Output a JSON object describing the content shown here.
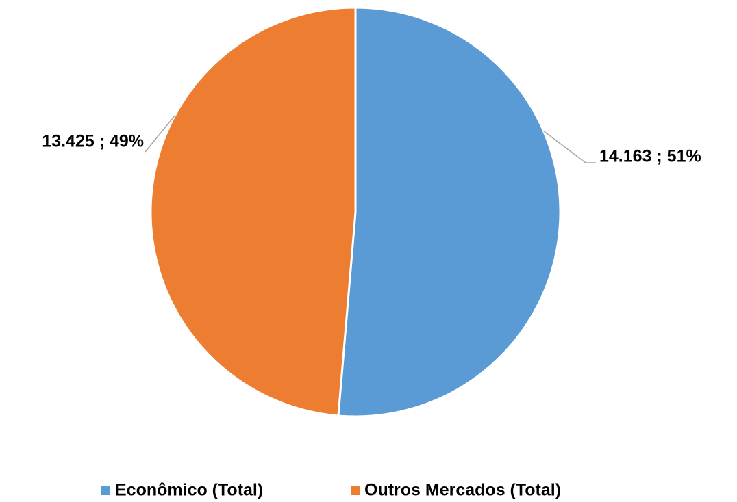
{
  "chart_data": {
    "type": "pie",
    "categories": [
      "Econômico (Total)",
      "Outros Mercados (Total)"
    ],
    "values": [
      14163,
      13425
    ],
    "value_labels": [
      "14.163 ; 51%",
      "13.425 ; 49%"
    ],
    "colors": [
      "#5b9bd5",
      "#ed7d31"
    ],
    "legend": "bottom"
  }
}
